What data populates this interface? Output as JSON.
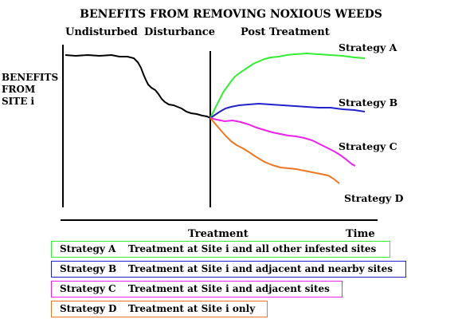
{
  "title": "BENEFITS FROM REMOVING NOXIOUS WEEDS",
  "phases": [
    "Undisturbed",
    "Disturbance",
    "Post Treatment"
  ],
  "y_label": [
    "BENEFITS",
    "FROM",
    "SITE i"
  ],
  "axis": {
    "treatment_label": "Treatment",
    "time_label": "Time"
  },
  "strategies": [
    {
      "label": "Strategy A",
      "color": "#33ee33",
      "legend_code": "Strategy A",
      "legend_text": "Treatment at Site i and all other infested sites"
    },
    {
      "label": "Strategy B",
      "color": "#2222cc",
      "legend_code": "Strategy B",
      "legend_text": "Treatment at Site i and adjacent and nearby sites"
    },
    {
      "label": "Strategy C",
      "color": "#ee22ee",
      "legend_code": "Strategy C",
      "legend_text": "Treatment at Site i and adjacent sites"
    },
    {
      "label": "Strategy D",
      "color": "#ee7722",
      "legend_code": "Strategy D",
      "legend_text": "Treatment at Site i only"
    }
  ]
}
